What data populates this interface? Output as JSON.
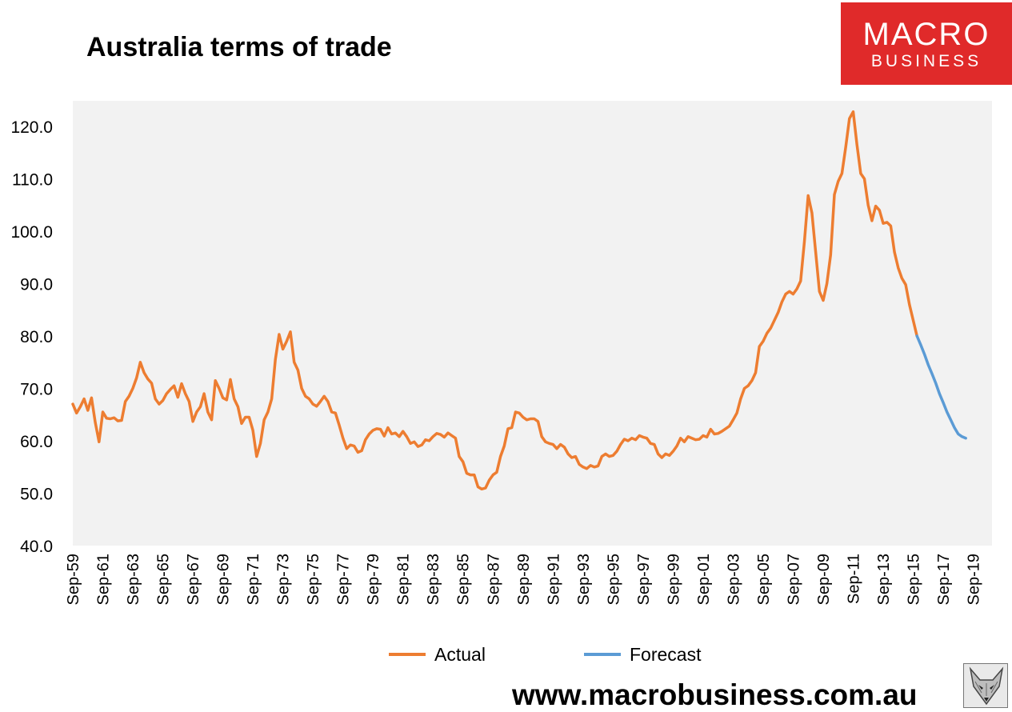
{
  "title": "Australia terms of trade",
  "logo": {
    "line1": "MACRO",
    "line2": "BUSINESS",
    "color": "#e02a2a"
  },
  "footer": "www.macrobusiness.com.au",
  "fox_icon": "fox-head-icon",
  "colors": {
    "actual": "#ed7d31",
    "forecast": "#5b9bd5",
    "plot_bg": "#f2f2f2"
  },
  "chart_data": {
    "type": "line",
    "title": "Australia terms of trade",
    "xlabel": "",
    "ylabel": "",
    "ylim": [
      40,
      125
    ],
    "yticks": [
      40,
      50,
      60,
      70,
      80,
      90,
      100,
      110,
      120
    ],
    "ytick_labels": [
      "40.0",
      "50.0",
      "60.0",
      "70.0",
      "80.0",
      "90.0",
      "100.0",
      "110.0",
      "120.0"
    ],
    "xticks": [
      1959,
      1961,
      1963,
      1965,
      1967,
      1969,
      1971,
      1973,
      1975,
      1977,
      1979,
      1981,
      1983,
      1985,
      1987,
      1989,
      1991,
      1993,
      1995,
      1997,
      1999,
      2001,
      2003,
      2005,
      2007,
      2009,
      2011,
      2013,
      2015,
      2017,
      2019
    ],
    "xtick_labels": [
      "Sep-59",
      "Sep-61",
      "Sep-63",
      "Sep-65",
      "Sep-67",
      "Sep-69",
      "Sep-71",
      "Sep-73",
      "Sep-75",
      "Sep-77",
      "Sep-79",
      "Sep-81",
      "Sep-83",
      "Sep-85",
      "Sep-87",
      "Sep-89",
      "Sep-91",
      "Sep-93",
      "Sep-95",
      "Sep-97",
      "Sep-99",
      "Sep-01",
      "Sep-03",
      "Sep-05",
      "Sep-07",
      "Sep-09",
      "Sep-11",
      "Sep-13",
      "Sep-15",
      "Sep-17",
      "Sep-19"
    ],
    "xlim": [
      1959,
      2020.25
    ],
    "grid": false,
    "legend": "bottom-center",
    "series": [
      {
        "name": "Actual",
        "points": [
          [
            1959.0,
            67.0
          ],
          [
            1959.25,
            65.3
          ],
          [
            1959.5,
            66.5
          ],
          [
            1959.75,
            68.0
          ],
          [
            1960.0,
            65.8
          ],
          [
            1960.25,
            68.2
          ],
          [
            1960.5,
            63.5
          ],
          [
            1960.75,
            59.8
          ],
          [
            1961.0,
            65.5
          ],
          [
            1961.25,
            64.3
          ],
          [
            1961.5,
            64.2
          ],
          [
            1961.75,
            64.4
          ],
          [
            1962.0,
            63.8
          ],
          [
            1962.25,
            63.9
          ],
          [
            1962.5,
            67.5
          ],
          [
            1962.75,
            68.5
          ],
          [
            1963.0,
            70.0
          ],
          [
            1963.25,
            72.0
          ],
          [
            1963.5,
            75.0
          ],
          [
            1963.75,
            73.0
          ],
          [
            1964.0,
            71.8
          ],
          [
            1964.25,
            71.0
          ],
          [
            1964.5,
            68.0
          ],
          [
            1964.75,
            67.0
          ],
          [
            1965.0,
            67.7
          ],
          [
            1965.25,
            69.0
          ],
          [
            1965.5,
            69.8
          ],
          [
            1965.75,
            70.5
          ],
          [
            1966.0,
            68.3
          ],
          [
            1966.25,
            70.9
          ],
          [
            1966.5,
            69.0
          ],
          [
            1966.75,
            67.5
          ],
          [
            1967.0,
            63.7
          ],
          [
            1967.25,
            65.5
          ],
          [
            1967.5,
            66.5
          ],
          [
            1967.75,
            69.0
          ],
          [
            1968.0,
            65.5
          ],
          [
            1968.25,
            64.0
          ],
          [
            1968.5,
            71.5
          ],
          [
            1968.75,
            70.0
          ],
          [
            1969.0,
            68.2
          ],
          [
            1969.25,
            67.8
          ],
          [
            1969.5,
            71.7
          ],
          [
            1969.75,
            68.0
          ],
          [
            1970.0,
            66.5
          ],
          [
            1970.25,
            63.3
          ],
          [
            1970.5,
            64.5
          ],
          [
            1970.75,
            64.5
          ],
          [
            1971.0,
            62.0
          ],
          [
            1971.25,
            57.0
          ],
          [
            1971.5,
            59.5
          ],
          [
            1971.75,
            64.0
          ],
          [
            1972.0,
            65.5
          ],
          [
            1972.25,
            68.0
          ],
          [
            1972.5,
            75.5
          ],
          [
            1972.75,
            80.3
          ],
          [
            1973.0,
            77.5
          ],
          [
            1973.25,
            79.0
          ],
          [
            1973.5,
            80.8
          ],
          [
            1973.75,
            75.0
          ],
          [
            1974.0,
            73.5
          ],
          [
            1974.25,
            70.0
          ],
          [
            1974.5,
            68.5
          ],
          [
            1974.75,
            68.0
          ],
          [
            1975.0,
            67.0
          ],
          [
            1975.25,
            66.6
          ],
          [
            1975.5,
            67.5
          ],
          [
            1975.75,
            68.5
          ],
          [
            1976.0,
            67.5
          ],
          [
            1976.25,
            65.5
          ],
          [
            1976.5,
            65.3
          ],
          [
            1976.75,
            63.0
          ],
          [
            1977.0,
            60.5
          ],
          [
            1977.25,
            58.5
          ],
          [
            1977.5,
            59.2
          ],
          [
            1977.75,
            59.0
          ],
          [
            1978.0,
            57.8
          ],
          [
            1978.25,
            58.1
          ],
          [
            1978.5,
            60.2
          ],
          [
            1978.75,
            61.3
          ],
          [
            1979.0,
            62.0
          ],
          [
            1979.25,
            62.3
          ],
          [
            1979.5,
            62.2
          ],
          [
            1979.75,
            60.9
          ],
          [
            1980.0,
            62.5
          ],
          [
            1980.25,
            61.3
          ],
          [
            1980.5,
            61.5
          ],
          [
            1980.75,
            60.8
          ],
          [
            1981.0,
            61.8
          ],
          [
            1981.25,
            60.8
          ],
          [
            1981.5,
            59.5
          ],
          [
            1981.75,
            59.8
          ],
          [
            1982.0,
            58.9
          ],
          [
            1982.25,
            59.2
          ],
          [
            1982.5,
            60.2
          ],
          [
            1982.75,
            60.0
          ],
          [
            1983.0,
            60.8
          ],
          [
            1983.25,
            61.4
          ],
          [
            1983.5,
            61.2
          ],
          [
            1983.75,
            60.7
          ],
          [
            1984.0,
            61.5
          ],
          [
            1984.25,
            61.0
          ],
          [
            1984.5,
            60.5
          ],
          [
            1984.75,
            57.0
          ],
          [
            1985.0,
            56.0
          ],
          [
            1985.25,
            53.8
          ],
          [
            1985.5,
            53.5
          ],
          [
            1985.75,
            53.5
          ],
          [
            1986.0,
            51.2
          ],
          [
            1986.25,
            50.8
          ],
          [
            1986.5,
            51.0
          ],
          [
            1986.75,
            52.5
          ],
          [
            1987.0,
            53.5
          ],
          [
            1987.25,
            54.0
          ],
          [
            1987.5,
            57.0
          ],
          [
            1987.75,
            59.0
          ],
          [
            1988.0,
            62.3
          ],
          [
            1988.25,
            62.5
          ],
          [
            1988.5,
            65.5
          ],
          [
            1988.75,
            65.3
          ],
          [
            1989.0,
            64.5
          ],
          [
            1989.25,
            64.0
          ],
          [
            1989.5,
            64.2
          ],
          [
            1989.75,
            64.2
          ],
          [
            1990.0,
            63.7
          ],
          [
            1990.25,
            60.8
          ],
          [
            1990.5,
            59.8
          ],
          [
            1990.75,
            59.5
          ],
          [
            1991.0,
            59.3
          ],
          [
            1991.25,
            58.5
          ],
          [
            1991.5,
            59.3
          ],
          [
            1991.75,
            58.8
          ],
          [
            1992.0,
            57.5
          ],
          [
            1992.25,
            56.8
          ],
          [
            1992.5,
            57.0
          ],
          [
            1992.75,
            55.5
          ],
          [
            1993.0,
            55.0
          ],
          [
            1993.25,
            54.7
          ],
          [
            1993.5,
            55.3
          ],
          [
            1993.75,
            55.0
          ],
          [
            1994.0,
            55.2
          ],
          [
            1994.25,
            57.0
          ],
          [
            1994.5,
            57.5
          ],
          [
            1994.75,
            57.0
          ],
          [
            1995.0,
            57.2
          ],
          [
            1995.25,
            58.0
          ],
          [
            1995.5,
            59.3
          ],
          [
            1995.75,
            60.3
          ],
          [
            1996.0,
            60.0
          ],
          [
            1996.25,
            60.5
          ],
          [
            1996.5,
            60.2
          ],
          [
            1996.75,
            61.0
          ],
          [
            1997.0,
            60.7
          ],
          [
            1997.25,
            60.5
          ],
          [
            1997.5,
            59.5
          ],
          [
            1997.75,
            59.3
          ],
          [
            1998.0,
            57.5
          ],
          [
            1998.25,
            56.8
          ],
          [
            1998.5,
            57.5
          ],
          [
            1998.75,
            57.2
          ],
          [
            1999.0,
            58.0
          ],
          [
            1999.25,
            59.0
          ],
          [
            1999.5,
            60.5
          ],
          [
            1999.75,
            59.8
          ],
          [
            2000.0,
            60.8
          ],
          [
            2000.25,
            60.5
          ],
          [
            2000.5,
            60.2
          ],
          [
            2000.75,
            60.3
          ],
          [
            2001.0,
            61.0
          ],
          [
            2001.25,
            60.7
          ],
          [
            2001.5,
            62.2
          ],
          [
            2001.75,
            61.3
          ],
          [
            2002.0,
            61.4
          ],
          [
            2002.25,
            61.8
          ],
          [
            2002.5,
            62.3
          ],
          [
            2002.75,
            62.8
          ],
          [
            2003.0,
            64.0
          ],
          [
            2003.25,
            65.3
          ],
          [
            2003.5,
            68.0
          ],
          [
            2003.75,
            70.0
          ],
          [
            2004.0,
            70.5
          ],
          [
            2004.25,
            71.5
          ],
          [
            2004.5,
            73.0
          ],
          [
            2004.75,
            78.0
          ],
          [
            2005.0,
            79.0
          ],
          [
            2005.25,
            80.5
          ],
          [
            2005.5,
            81.5
          ],
          [
            2005.75,
            83.0
          ],
          [
            2006.0,
            84.5
          ],
          [
            2006.25,
            86.5
          ],
          [
            2006.5,
            88.0
          ],
          [
            2006.75,
            88.5
          ],
          [
            2007.0,
            88.0
          ],
          [
            2007.25,
            89.0
          ],
          [
            2007.5,
            90.5
          ],
          [
            2007.75,
            98.0
          ],
          [
            2008.0,
            106.8
          ],
          [
            2008.25,
            103.5
          ],
          [
            2008.5,
            96.0
          ],
          [
            2008.75,
            88.5
          ],
          [
            2009.0,
            86.8
          ],
          [
            2009.25,
            90.0
          ],
          [
            2009.5,
            95.5
          ],
          [
            2009.75,
            107.0
          ],
          [
            2010.0,
            109.5
          ],
          [
            2010.25,
            111.0
          ],
          [
            2010.5,
            116.0
          ],
          [
            2010.75,
            121.5
          ],
          [
            2011.0,
            122.8
          ],
          [
            2011.25,
            116.5
          ],
          [
            2011.5,
            111.0
          ],
          [
            2011.75,
            110.0
          ],
          [
            2012.0,
            105.0
          ],
          [
            2012.25,
            102.0
          ],
          [
            2012.5,
            104.8
          ],
          [
            2012.75,
            104.0
          ],
          [
            2013.0,
            101.5
          ],
          [
            2013.25,
            101.7
          ],
          [
            2013.5,
            101.0
          ],
          [
            2013.75,
            96.0
          ],
          [
            2014.0,
            93.0
          ],
          [
            2014.25,
            91.0
          ],
          [
            2014.5,
            89.8
          ],
          [
            2014.75,
            86.0
          ],
          [
            2015.0,
            83.0
          ],
          [
            2015.25,
            80.0
          ]
        ]
      },
      {
        "name": "Forecast",
        "points": [
          [
            2015.25,
            80.0
          ],
          [
            2015.5,
            78.3
          ],
          [
            2015.75,
            76.5
          ],
          [
            2016.0,
            74.5
          ],
          [
            2016.25,
            72.8
          ],
          [
            2016.5,
            71.0
          ],
          [
            2016.75,
            69.0
          ],
          [
            2017.0,
            67.3
          ],
          [
            2017.25,
            65.5
          ],
          [
            2017.5,
            64.0
          ],
          [
            2017.75,
            62.5
          ],
          [
            2018.0,
            61.3
          ],
          [
            2018.25,
            60.8
          ],
          [
            2018.5,
            60.5
          ]
        ]
      }
    ]
  }
}
